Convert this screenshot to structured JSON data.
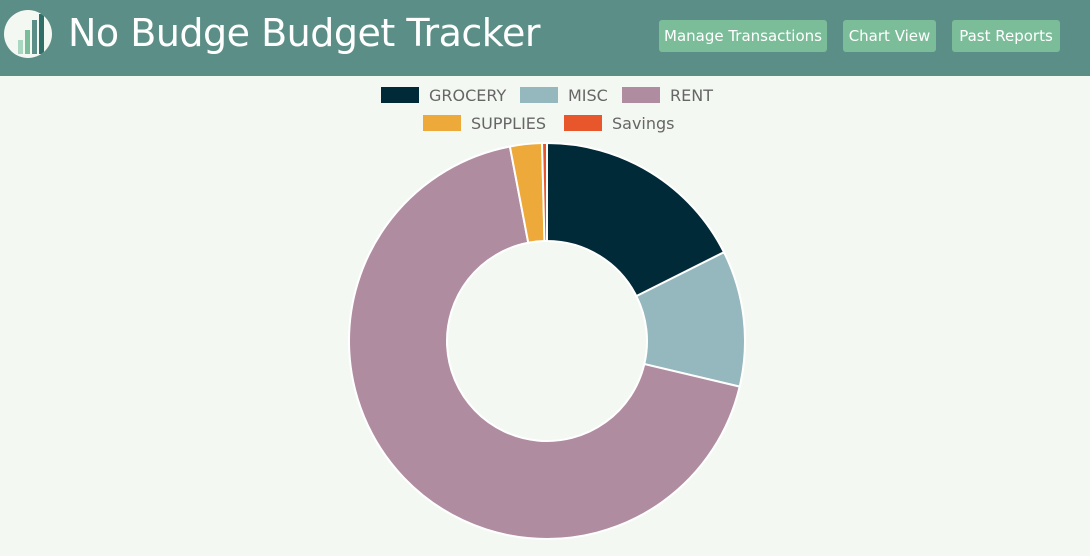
{
  "app": {
    "title": "No Budge Budget Tracker",
    "logo_icon": "bar-chart-logo-icon"
  },
  "nav": {
    "manage_label": "Manage Transactions",
    "chart_label": "Chart View",
    "reports_label": "Past Reports"
  },
  "chart_data": {
    "type": "pie",
    "variant": "doughnut",
    "categories": [
      "GROCERY",
      "MISC",
      "RENT",
      "SUPPLIES",
      "Savings"
    ],
    "values": [
      17.6,
      11.1,
      68.3,
      2.6,
      0.4
    ],
    "colors": [
      "#012a39",
      "#95b8bf",
      "#b08ca0",
      "#eda93a",
      "#e8572b"
    ],
    "legend_position": "top"
  }
}
